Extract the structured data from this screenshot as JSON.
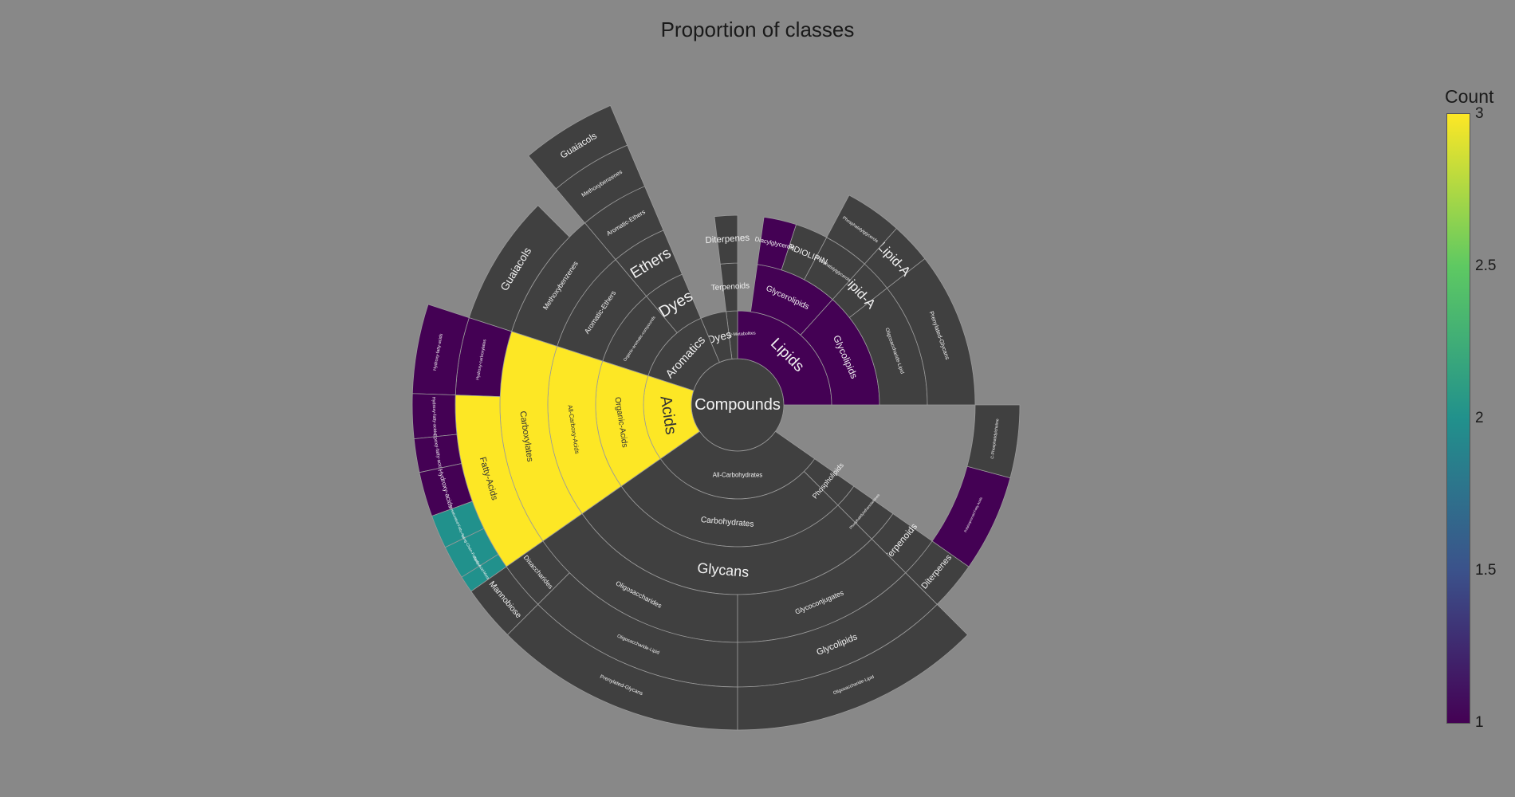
{
  "chart_data": {
    "type": "sunburst",
    "title": "Proportion of classes",
    "colorbar": {
      "title": "Count",
      "range": [
        1,
        3
      ],
      "ticks": [
        "3",
        "2.5",
        "2",
        "1.5",
        "1"
      ],
      "colorscale": "viridis"
    },
    "rings": [
      [
        {
          "label": "Compounds",
          "a0": 0,
          "a1": 360,
          "count": null
        }
      ],
      [
        {
          "label": "Lipids",
          "a0": 0,
          "a1": 90,
          "count": 1
        },
        {
          "label": "Secondary-Metabolites",
          "a0": 90,
          "a1": 97,
          "count": null
        },
        {
          "label": "Dyes",
          "a0": 97,
          "a1": 113,
          "count": null
        },
        {
          "label": "Aromatics",
          "a0": 113,
          "a1": 162,
          "count": null
        },
        {
          "label": "Acids",
          "a0": 162,
          "a1": 215,
          "count": 3
        },
        {
          "label": "All-Carbohydrates",
          "a0": 215,
          "a1": 325,
          "count": null
        }
      ],
      [
        {
          "label": "Glycolipids",
          "a0": 0,
          "a1": 48,
          "count": 1
        },
        {
          "label": "Glycerolipids",
          "a0": 48,
          "a1": 82,
          "count": 1
        },
        {
          "label": "Terpenoids",
          "a0": 90,
          "a1": 97,
          "count": null
        },
        {
          "label": "Dyes",
          "a0": 113,
          "a1": 130,
          "count": null
        },
        {
          "label": "Organic-aromatic-compounds",
          "a0": 130,
          "a1": 162,
          "count": null
        },
        {
          "label": "Organic-Acids",
          "a0": 162,
          "a1": 215,
          "count": 3
        },
        {
          "label": "Carbohydrates",
          "a0": 215,
          "a1": 315,
          "count": null
        },
        {
          "label": "Phospholipids",
          "a0": 315,
          "a1": 325,
          "count": null
        }
      ],
      [
        {
          "label": "Oligosaccharide-Lipid",
          "a0": 0,
          "a1": 38,
          "count": null
        },
        {
          "label": "Lipid-A",
          "a0": 38,
          "a1": 48,
          "count": null
        },
        {
          "label": "Phosphatidylglycerols",
          "a0": 48,
          "a1": 62,
          "count": null
        },
        {
          "label": "CARDIOLIPIN",
          "a0": 62,
          "a1": 72,
          "count": null
        },
        {
          "label": "Diacylglycerols",
          "a0": 72,
          "a1": 82,
          "count": 1
        },
        {
          "label": "Diterpenes",
          "a0": 90,
          "a1": 97,
          "count": null
        },
        {
          "label": "Ethers",
          "a0": 113,
          "a1": 130,
          "count": null
        },
        {
          "label": "Aromatic-Ethers",
          "a0": 130,
          "a1": 162,
          "count": null
        },
        {
          "label": "All-Carboxy-Acids",
          "a0": 162,
          "a1": 215,
          "count": 3
        },
        {
          "label": "Glycans",
          "a0": 215,
          "a1": 315,
          "count": null
        },
        {
          "label": "Phosphatidylethanolamines",
          "a0": 315,
          "a1": 325,
          "count": null
        }
      ],
      [
        {
          "label": "Prenylated-Glycans",
          "a0": 0,
          "a1": 38,
          "count": null
        },
        {
          "label": "Lipid-A",
          "a0": 38,
          "a1": 48,
          "count": null
        },
        {
          "label": "Phosphatidylglycerols",
          "a0": 48,
          "a1": 62,
          "count": null
        },
        {
          "label": "Terpenoids",
          "a0": 315,
          "a1": 325,
          "count": null
        },
        {
          "label": "Aromatic-Ethers",
          "a0": 113,
          "a1": 130,
          "count": null
        },
        {
          "label": "Methoxybenzenes",
          "a0": 130,
          "a1": 162,
          "count": null
        },
        {
          "label": "Carboxylates",
          "a0": 162,
          "a1": 215,
          "count": 3
        },
        {
          "label": "Oligosaccharides",
          "a0": 215,
          "a1": 270,
          "count": null
        },
        {
          "label": "Glycoconjugates",
          "a0": 270,
          "a1": 315,
          "count": null
        }
      ],
      [
        {
          "label": "Methoxybenzenes",
          "a0": 113,
          "a1": 130,
          "count": null
        },
        {
          "label": "Guaiacols",
          "a0": 135,
          "a1": 162,
          "count": null
        },
        {
          "label": "Hydroxy-carboxylates",
          "a0": 162,
          "a1": 178,
          "count": 1
        },
        {
          "label": "Fatty-Acids",
          "a0": 178,
          "a1": 215,
          "count": 3
        },
        {
          "label": "Disaccharides",
          "a0": 215,
          "a1": 225,
          "count": null
        },
        {
          "label": "Oligosaccharide-Lipid",
          "a0": 225,
          "a1": 270,
          "count": null
        },
        {
          "label": "Glycolipids",
          "a0": 270,
          "a1": 315,
          "count": null
        },
        {
          "label": "Diterpenes",
          "a0": 315,
          "a1": 325,
          "count": null
        },
        {
          "label": "Polyisoprenoid Fatty Acids",
          "a0": 325,
          "a1": 345,
          "count": 1
        },
        {
          "label": "C-Phosphatidylcholine",
          "a0": 345,
          "a1": 360,
          "count": null
        }
      ],
      [
        {
          "label": "Guaiacols",
          "a0": 113,
          "a1": 130,
          "count": null
        },
        {
          "label": "Hydroxy-fatty-acids",
          "a0": 162,
          "a1": 178,
          "count": 1
        },
        {
          "label": "Hydroxy-fatty-acids",
          "a0": 178,
          "a1": 186,
          "count": 1
        },
        {
          "label": "Epoxy-fatty-acids",
          "a0": 186,
          "a1": 192,
          "count": 1
        },
        {
          "label": "Hydroxy-acids",
          "a0": 192,
          "a1": 200,
          "count": 1
        },
        {
          "label": "Unsaturated-Fatty-Acids",
          "a0": 200,
          "a1": 206,
          "count": 2
        },
        {
          "label": "Long-Chain-Fatty-Acids",
          "a0": 206,
          "a1": 212,
          "count": 2
        },
        {
          "label": "Fatty-Acid-Metabolites",
          "a0": 212,
          "a1": 215,
          "count": 2
        },
        {
          "label": "Mannobiose",
          "a0": 215,
          "a1": 225,
          "count": null
        },
        {
          "label": "Prenylated-Glycans",
          "a0": 225,
          "a1": 270,
          "count": null
        },
        {
          "label": "Oligosaccharide-Lipid",
          "a0": 270,
          "a1": 315,
          "count": null
        }
      ]
    ]
  }
}
